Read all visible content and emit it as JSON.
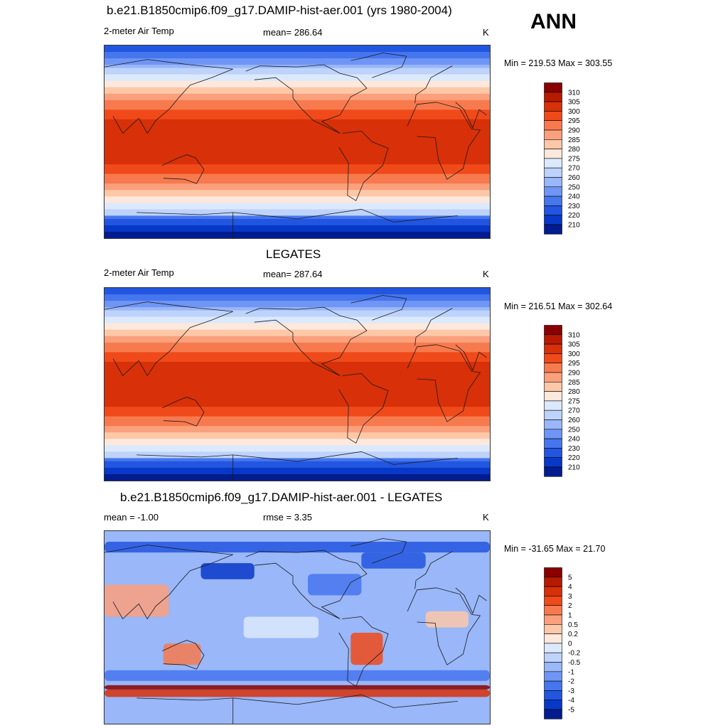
{
  "header": {
    "ann_label": "ANN"
  },
  "panels": [
    {
      "title": "b.e21.B1850cmip6.f09_g17.DAMIP-hist-aer.001 (yrs 1980-2004)",
      "left_label": "2-meter Air Temp",
      "center_label": "mean= 286.64",
      "units": "K",
      "minmax": "Min = 219.53 Max = 303.55",
      "kind": "abs",
      "colorbar": {
        "labels": [
          "310",
          "305",
          "300",
          "295",
          "290",
          "285",
          "280",
          "275",
          "270",
          "260",
          "250",
          "240",
          "230",
          "220",
          "210"
        ],
        "colors": [
          "#8a0000",
          "#b81a00",
          "#d83008",
          "#f04a1a",
          "#f77a4e",
          "#fba07c",
          "#fdc8a8",
          "#fde8dc",
          "#dce9fd",
          "#bed3fb",
          "#99b7f9",
          "#6f95f5",
          "#4676ee",
          "#2256e0",
          "#0838c8",
          "#001c8f"
        ]
      }
    },
    {
      "title": "LEGATES",
      "left_label": "2-meter Air Temp",
      "center_label": "mean= 287.64",
      "units": "K",
      "minmax": "Min = 216.51 Max = 302.64",
      "kind": "abs",
      "colorbar": {
        "labels": [
          "310",
          "305",
          "300",
          "295",
          "290",
          "285",
          "280",
          "275",
          "270",
          "260",
          "250",
          "240",
          "230",
          "220",
          "210"
        ],
        "colors": [
          "#8a0000",
          "#b81a00",
          "#d83008",
          "#f04a1a",
          "#f77a4e",
          "#fba07c",
          "#fdc8a8",
          "#fde8dc",
          "#dce9fd",
          "#bed3fb",
          "#99b7f9",
          "#6f95f5",
          "#4676ee",
          "#2256e0",
          "#0838c8",
          "#001c8f"
        ]
      }
    },
    {
      "title": "b.e21.B1850cmip6.f09_g17.DAMIP-hist-aer.001 - LEGATES",
      "left_label": "mean =  -1.00",
      "center_label": "rmse =   3.35",
      "units": "K",
      "minmax": "Min = -31.65 Max =  21.70",
      "kind": "diff",
      "colorbar": {
        "labels": [
          "5",
          "4",
          "3",
          "2",
          "1",
          "0.5",
          "0.2",
          "0",
          "-0.2",
          "-0.5",
          "-1",
          "-2",
          "-3",
          "-4",
          "-5"
        ],
        "colors": [
          "#8a0000",
          "#b81a00",
          "#d83008",
          "#f04a1a",
          "#f77a4e",
          "#fba07c",
          "#fdc8a8",
          "#fde8dc",
          "#dce9fd",
          "#bed3fb",
          "#99b7f9",
          "#6f95f5",
          "#4676ee",
          "#2256e0",
          "#0838c8",
          "#001c8f"
        ]
      }
    }
  ]
}
